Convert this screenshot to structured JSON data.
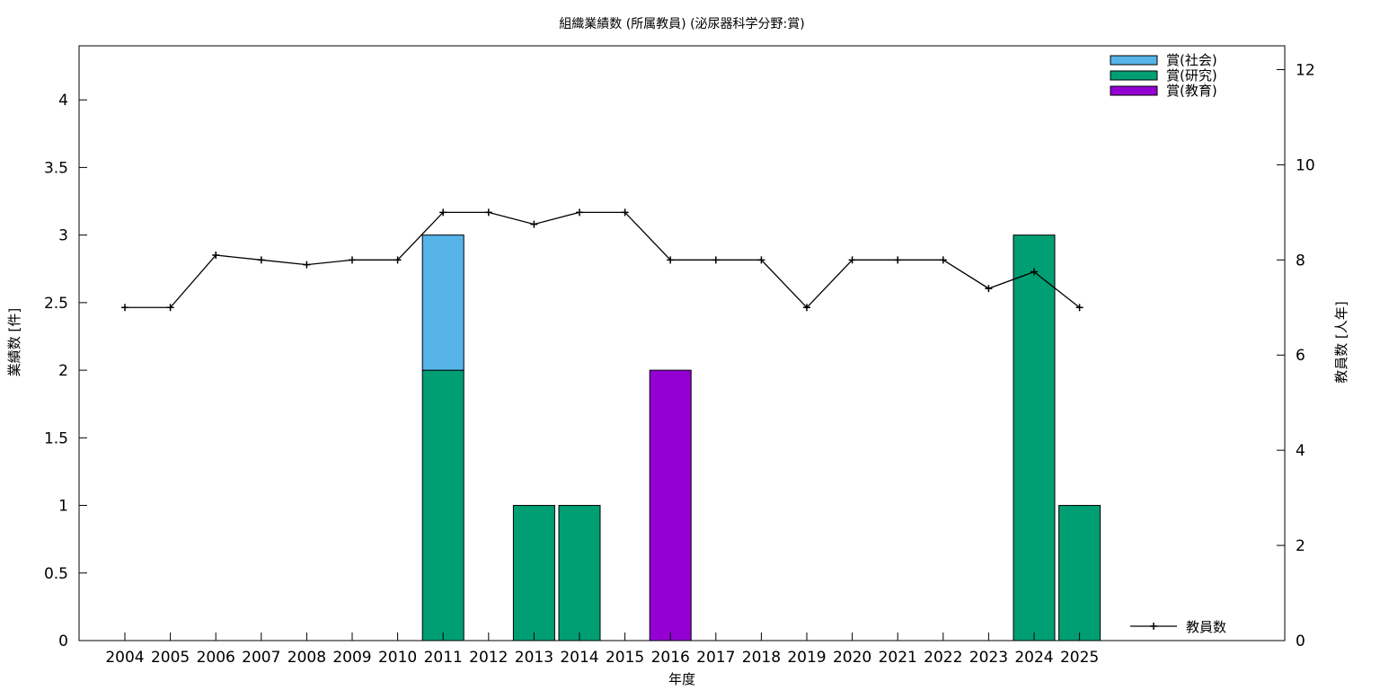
{
  "chart_data": {
    "type": "bar",
    "stacked": true,
    "title": "組織業績数 (所属教員) (泌尿器科学分野:賞)",
    "xlabel": "年度",
    "ylabel": "業績数 [件]",
    "y2label": "教員数 [人年]",
    "categories": [
      "2004",
      "2005",
      "2006",
      "2007",
      "2008",
      "2009",
      "2010",
      "2011",
      "2012",
      "2013",
      "2014",
      "2015",
      "2016",
      "2017",
      "2018",
      "2019",
      "2020",
      "2021",
      "2022",
      "2023",
      "2024",
      "2025"
    ],
    "ylim": [
      0,
      4.4
    ],
    "yticks": [
      "0",
      "0.5",
      "1",
      "1.5",
      "2",
      "2.5",
      "3",
      "3.5",
      "4"
    ],
    "y2lim": [
      0,
      12.5
    ],
    "y2ticks": [
      "0",
      "2",
      "4",
      "6",
      "8",
      "10",
      "12"
    ],
    "grid": false,
    "legend_position": "top-right",
    "series": [
      {
        "name": "賞(研究)",
        "color": "#009e73",
        "values": [
          0,
          0,
          0,
          0,
          0,
          0,
          0,
          2,
          0,
          1,
          1,
          0,
          0,
          0,
          0,
          0,
          0,
          0,
          0,
          0,
          3,
          1
        ]
      },
      {
        "name": "賞(社会)",
        "color": "#56b4e9",
        "values": [
          0,
          0,
          0,
          0,
          0,
          0,
          0,
          1,
          0,
          0,
          0,
          0,
          0,
          0,
          0,
          0,
          0,
          0,
          0,
          0,
          0,
          0
        ]
      },
      {
        "name": "賞(教育)",
        "color": "#9400d3",
        "values": [
          0,
          0,
          0,
          0,
          0,
          0,
          0,
          0,
          0,
          0,
          0,
          0,
          2,
          0,
          0,
          0,
          0,
          0,
          0,
          0,
          0,
          0
        ]
      }
    ],
    "legend_order": [
      "賞(社会)",
      "賞(研究)",
      "賞(教育)"
    ],
    "line_series": {
      "name": "教員数",
      "axis": "y2",
      "color": "#000000",
      "values": [
        7,
        7,
        8.1,
        8,
        7.9,
        8,
        8,
        9,
        9,
        8.75,
        9,
        9,
        8,
        8,
        8,
        7,
        8,
        8,
        8,
        7.4,
        7.75,
        7
      ]
    }
  }
}
